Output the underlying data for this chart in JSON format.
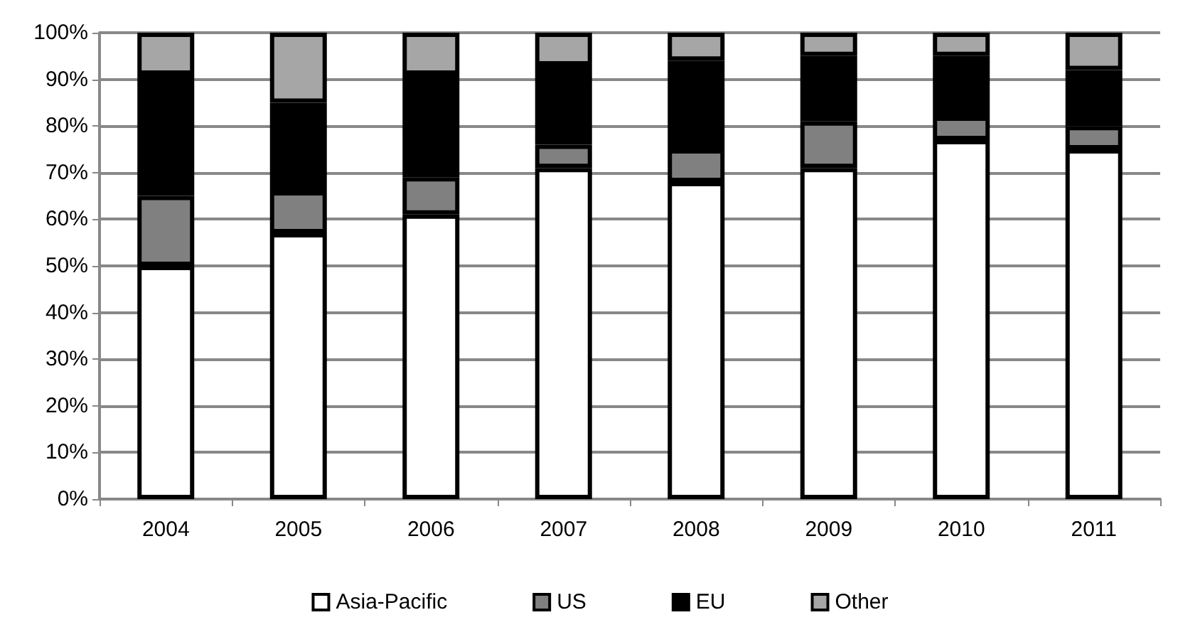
{
  "chart_data": {
    "type": "bar",
    "stacked": true,
    "categories": [
      "2004",
      "2005",
      "2006",
      "2007",
      "2008",
      "2009",
      "2010",
      "2011"
    ],
    "series": [
      {
        "name": "Asia-Pacific",
        "color": "#ffffff",
        "values": [
          50,
          57,
          61,
          71,
          68,
          71,
          77,
          75
        ]
      },
      {
        "name": "US",
        "color": "#808080",
        "values": [
          15,
          9,
          8,
          5,
          7,
          10,
          5,
          5
        ]
      },
      {
        "name": "EU",
        "color": "#000000",
        "values": [
          26,
          19,
          22,
          17,
          19,
          14,
          13,
          12
        ]
      },
      {
        "name": "Other",
        "color": "#a6a6a6",
        "values": [
          9,
          15,
          9,
          7,
          6,
          5,
          5,
          8
        ]
      }
    ],
    "ylim": [
      0,
      100
    ],
    "yticks": [
      {
        "value": 0,
        "label": "0%"
      },
      {
        "value": 10,
        "label": "10%"
      },
      {
        "value": 20,
        "label": "20%"
      },
      {
        "value": 30,
        "label": "30%"
      },
      {
        "value": 40,
        "label": "40%"
      },
      {
        "value": 50,
        "label": "50%"
      },
      {
        "value": 60,
        "label": "60%"
      },
      {
        "value": 70,
        "label": "70%"
      },
      {
        "value": 80,
        "label": "80%"
      },
      {
        "value": 90,
        "label": "90%"
      },
      {
        "value": 100,
        "label": "100%"
      }
    ],
    "grid": "y",
    "legend": "bottom"
  }
}
